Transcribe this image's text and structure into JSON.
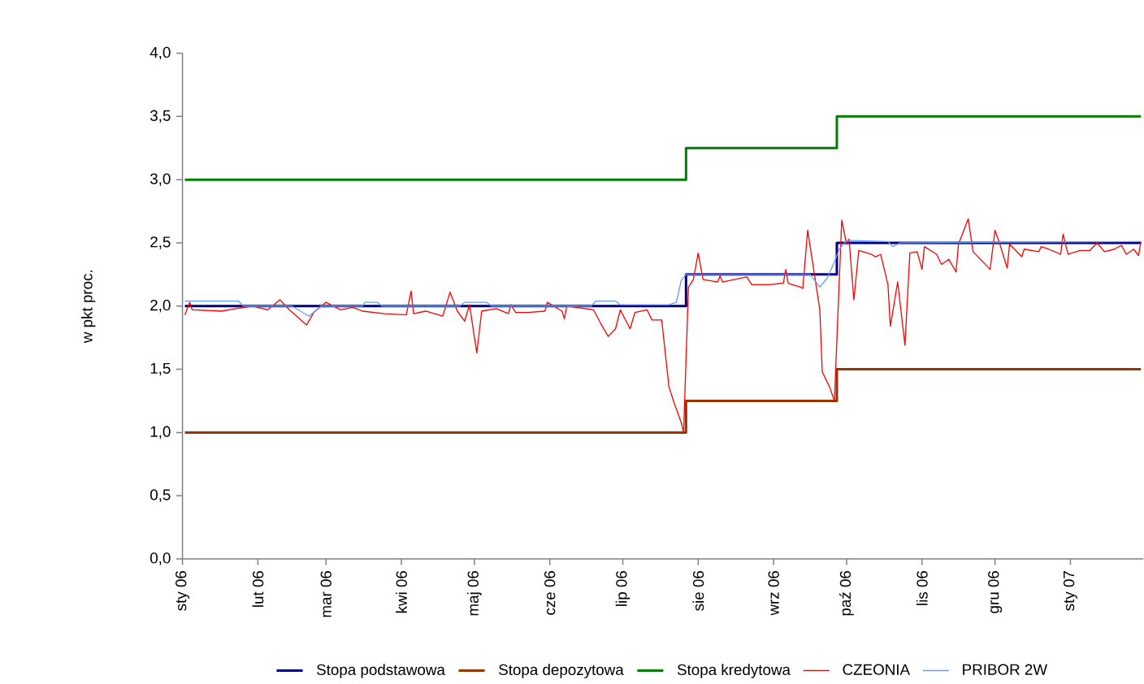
{
  "chart_data": {
    "type": "line",
    "ylabel": "w pkt proc.",
    "xlim": [
      "2006-01-01",
      "2007-01-31"
    ],
    "xticks": [
      {
        "value": "2006-01-01",
        "label": "sty 06"
      },
      {
        "value": "2006-02-01",
        "label": "lut 06"
      },
      {
        "value": "2006-03-01",
        "label": "mar 06"
      },
      {
        "value": "2006-04-01",
        "label": "kwi 06"
      },
      {
        "value": "2006-05-01",
        "label": "maj 06"
      },
      {
        "value": "2006-06-01",
        "label": "cze 06"
      },
      {
        "value": "2006-07-01",
        "label": "lip 06"
      },
      {
        "value": "2006-08-01",
        "label": "sie 06"
      },
      {
        "value": "2006-09-01",
        "label": "wrz 06"
      },
      {
        "value": "2006-10-01",
        "label": "paź 06"
      },
      {
        "value": "2006-11-01",
        "label": "lis 06"
      },
      {
        "value": "2006-12-01",
        "label": "gru 06"
      },
      {
        "value": "2007-01-01",
        "label": "sty 07"
      }
    ],
    "ylim": [
      0,
      4
    ],
    "yticks": [
      {
        "value": 0,
        "label": "0,0"
      },
      {
        "value": 0.5,
        "label": "0,5"
      },
      {
        "value": 1,
        "label": "1,0"
      },
      {
        "value": 1.5,
        "label": "1,5"
      },
      {
        "value": 2,
        "label": "2,0"
      },
      {
        "value": 2.5,
        "label": "2,5"
      },
      {
        "value": 3,
        "label": "3,0"
      },
      {
        "value": 3.5,
        "label": "3,5"
      },
      {
        "value": 4,
        "label": "4,0"
      }
    ],
    "legend": "bottom",
    "series": [
      {
        "name": "Stopa podstawowa",
        "type": "step",
        "color": "#000080",
        "x": [
          "2006-01-02",
          "2006-07-27",
          "2006-09-27",
          "2007-01-30"
        ],
        "values": [
          2.0,
          2.25,
          2.5,
          2.5
        ]
      },
      {
        "name": "Stopa depozytowa",
        "type": "step",
        "color": "#993300",
        "x": [
          "2006-01-02",
          "2006-07-27",
          "2006-09-27",
          "2007-01-30"
        ],
        "values": [
          1.0,
          1.25,
          1.5,
          1.5
        ]
      },
      {
        "name": "Stopa kredytowa",
        "type": "step",
        "color": "#008000",
        "x": [
          "2006-01-02",
          "2006-07-27",
          "2006-09-27",
          "2007-01-30"
        ],
        "values": [
          3.0,
          3.25,
          3.5,
          3.5
        ]
      },
      {
        "name": "CZEONIA",
        "color": "#ff0000",
        "x": [
          "2006-01-02",
          "2006-01-04",
          "2006-01-05",
          "2006-01-17",
          "2006-01-23",
          "2006-01-30",
          "2006-02-05",
          "2006-02-10",
          "2006-02-14",
          "2006-02-21",
          "2006-02-24",
          "2006-03-01",
          "2006-03-07",
          "2006-03-12",
          "2006-03-16",
          "2006-03-25",
          "2006-04-03",
          "2006-04-05",
          "2006-04-06",
          "2006-04-11",
          "2006-04-18",
          "2006-04-21",
          "2006-04-24",
          "2006-04-27",
          "2006-04-29",
          "2006-05-02",
          "2006-05-04",
          "2006-05-10",
          "2006-05-15",
          "2006-05-16",
          "2006-05-18",
          "2006-05-23",
          "2006-05-30",
          "2006-05-31",
          "2006-06-06",
          "2006-06-07",
          "2006-06-08",
          "2006-06-19",
          "2006-06-22",
          "2006-06-25",
          "2006-06-28",
          "2006-06-30",
          "2006-07-04",
          "2006-07-06",
          "2006-07-11",
          "2006-07-13",
          "2006-07-17",
          "2006-07-20",
          "2006-07-22",
          "2006-07-25",
          "2006-07-26",
          "2006-07-28",
          "2006-07-30",
          "2006-08-01",
          "2006-08-03",
          "2006-08-09",
          "2006-08-10",
          "2006-08-11",
          "2006-08-21",
          "2006-08-23",
          "2006-08-30",
          "2006-09-05",
          "2006-09-06",
          "2006-09-07",
          "2006-09-12",
          "2006-09-13",
          "2006-09-15",
          "2006-09-17",
          "2006-09-20",
          "2006-09-21",
          "2006-09-24",
          "2006-09-26",
          "2006-09-29",
          "2006-10-01",
          "2006-10-02",
          "2006-10-04",
          "2006-10-06",
          "2006-10-11",
          "2006-10-13",
          "2006-10-15",
          "2006-10-18",
          "2006-10-19",
          "2006-10-22",
          "2006-10-25",
          "2006-10-27",
          "2006-10-30",
          "2006-11-01",
          "2006-11-02",
          "2006-11-07",
          "2006-11-09",
          "2006-11-12",
          "2006-11-15",
          "2006-11-16",
          "2006-11-20",
          "2006-11-22",
          "2006-11-29",
          "2006-12-01",
          "2006-12-03",
          "2006-12-06",
          "2006-12-07",
          "2006-12-12",
          "2006-12-13",
          "2006-12-19",
          "2006-12-20",
          "2006-12-23",
          "2006-12-28",
          "2006-12-29",
          "2006-12-31",
          "2007-01-05",
          "2007-01-09",
          "2007-01-12",
          "2007-01-15",
          "2007-01-19",
          "2007-01-22",
          "2007-01-24",
          "2007-01-27",
          "2007-01-29",
          "2007-01-30"
        ],
        "values": [
          1.93,
          2.03,
          1.97,
          1.96,
          1.98,
          2.0,
          1.97,
          2.05,
          1.97,
          1.85,
          1.95,
          2.03,
          1.97,
          1.99,
          1.96,
          1.94,
          1.93,
          2.12,
          1.94,
          1.96,
          1.92,
          2.11,
          1.96,
          1.88,
          2.01,
          1.63,
          1.96,
          1.98,
          1.94,
          2.01,
          1.95,
          1.95,
          1.96,
          2.03,
          1.96,
          1.9,
          2.0,
          1.97,
          1.86,
          1.76,
          1.82,
          1.97,
          1.82,
          1.95,
          1.97,
          1.89,
          1.89,
          1.36,
          1.24,
          1.08,
          1.0,
          2.15,
          2.21,
          2.42,
          2.21,
          2.19,
          2.24,
          2.19,
          2.23,
          2.17,
          2.17,
          2.18,
          2.29,
          2.18,
          2.15,
          2.14,
          2.6,
          2.35,
          1.97,
          1.48,
          1.36,
          1.25,
          2.68,
          2.49,
          2.53,
          2.05,
          2.44,
          2.41,
          2.39,
          2.41,
          2.17,
          1.84,
          2.19,
          1.69,
          2.42,
          2.43,
          2.29,
          2.47,
          2.41,
          2.33,
          2.37,
          2.27,
          2.49,
          2.69,
          2.43,
          2.29,
          2.6,
          2.49,
          2.3,
          2.49,
          2.39,
          2.45,
          2.43,
          2.47,
          2.45,
          2.41,
          2.57,
          2.41,
          2.44,
          2.44,
          2.5,
          2.43,
          2.45,
          2.48,
          2.41,
          2.45,
          2.4,
          2.51
        ]
      },
      {
        "name": "PRIBOR 2W",
        "color": "#6699ff",
        "x": [
          "2006-01-02",
          "2006-01-24",
          "2006-01-26",
          "2006-02-15",
          "2006-02-22",
          "2006-02-27",
          "2006-03-16",
          "2006-03-17",
          "2006-03-22",
          "2006-03-24",
          "2006-04-25",
          "2006-04-27",
          "2006-05-06",
          "2006-05-08",
          "2006-06-18",
          "2006-06-20",
          "2006-06-28",
          "2006-06-30",
          "2006-07-20",
          "2006-07-23",
          "2006-07-25",
          "2006-07-27",
          "2006-09-16",
          "2006-09-20",
          "2006-09-23",
          "2006-09-26",
          "2006-09-28",
          "2006-10-01",
          "2006-10-18",
          "2006-10-20",
          "2006-10-23",
          "2007-01-30"
        ],
        "values": [
          2.04,
          2.04,
          2.0,
          2.0,
          1.92,
          2.0,
          2.0,
          2.03,
          2.03,
          2.0,
          2.0,
          2.03,
          2.03,
          2.0,
          2.0,
          2.04,
          2.04,
          2.01,
          2.01,
          2.03,
          2.2,
          2.25,
          2.25,
          2.15,
          2.22,
          2.35,
          2.45,
          2.52,
          2.51,
          2.47,
          2.5,
          2.51
        ]
      }
    ]
  }
}
